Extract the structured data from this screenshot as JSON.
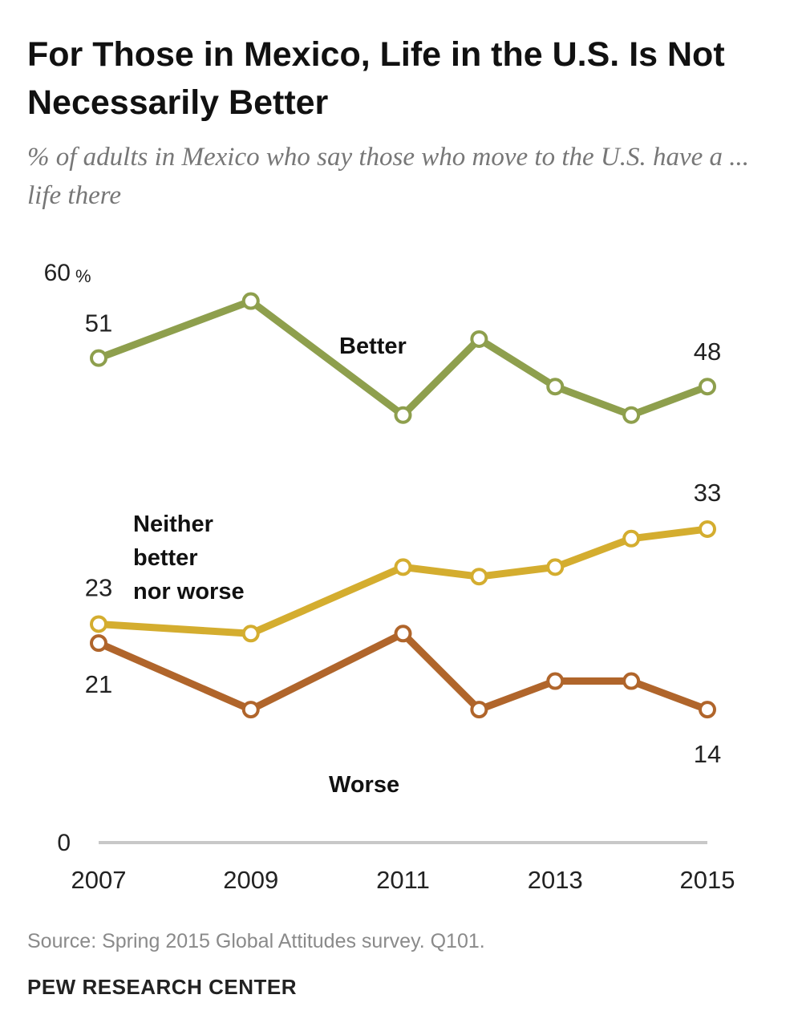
{
  "header": {
    "title": "For Those in Mexico, Life in the U.S. Is Not Necessarily Better",
    "subtitle": "% of adults in Mexico who say those who move to the U.S. have a ... life there"
  },
  "footer": {
    "source": "Source: Spring 2015 Global Attitudes survey. Q101.",
    "brand": "PEW RESEARCH CENTER"
  },
  "chart_data": {
    "type": "line",
    "title": "For Those in Mexico, Life in the U.S. Is Not Necessarily Better",
    "subtitle": "% of adults in Mexico who say those who move to the U.S. have a ... life there",
    "x": [
      2007,
      2009,
      2011,
      2012,
      2013,
      2014,
      2015
    ],
    "x_tick_labels": [
      "2007",
      "2009",
      "2011",
      "2013",
      "2015"
    ],
    "x_tick_values": [
      2007,
      2009,
      2011,
      2013,
      2015
    ],
    "xlim": [
      2007,
      2015
    ],
    "ylim": [
      0,
      60
    ],
    "y_tick_labels": [
      {
        "value": 60,
        "label": "60",
        "suffix": "%"
      },
      {
        "value": 0,
        "label": "0",
        "suffix": ""
      }
    ],
    "grid": false,
    "series": [
      {
        "name": "Better",
        "color": "#8e9f4d",
        "values": [
          51,
          57,
          45,
          53,
          48,
          45,
          48
        ],
        "end_labels": {
          "first": "51",
          "last": "48"
        }
      },
      {
        "name": "Neither better nor worse",
        "name_lines": [
          "Neither",
          "better",
          "nor worse"
        ],
        "color": "#d4ad2f",
        "values": [
          23,
          22,
          29,
          28,
          29,
          32,
          33
        ],
        "end_labels": {
          "first": "23",
          "last": "33"
        }
      },
      {
        "name": "Worse",
        "color": "#b0652b",
        "values": [
          21,
          14,
          22,
          14,
          17,
          17,
          14
        ],
        "end_labels": {
          "first": "21",
          "last": "14"
        }
      }
    ]
  }
}
